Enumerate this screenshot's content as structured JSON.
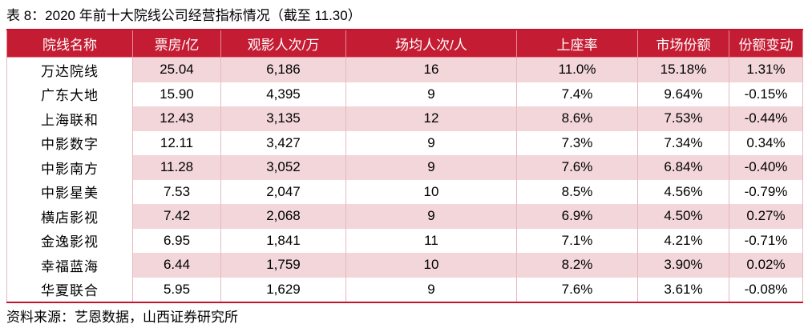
{
  "caption": "表 8：2020 年前十大院线公司经营指标情况（截至 11.30）",
  "table": {
    "headers": [
      "院线名称",
      "票房/亿",
      "观影人次/万",
      "场均人次/人",
      "上座率",
      "市场份额",
      "份额变动"
    ],
    "rows": [
      [
        "万达院线",
        "25.04",
        "6,186",
        "16",
        "11.0%",
        "15.18%",
        "1.31%"
      ],
      [
        "广东大地",
        "15.90",
        "4,395",
        "9",
        "7.4%",
        "9.64%",
        "-0.15%"
      ],
      [
        "上海联和",
        "12.43",
        "3,135",
        "12",
        "8.6%",
        "7.53%",
        "-0.44%"
      ],
      [
        "中影数字",
        "12.11",
        "3,427",
        "9",
        "7.3%",
        "7.34%",
        "0.34%"
      ],
      [
        "中影南方",
        "11.28",
        "3,052",
        "9",
        "7.6%",
        "6.84%",
        "-0.40%"
      ],
      [
        "中影星美",
        "7.53",
        "2,047",
        "10",
        "8.5%",
        "4.56%",
        "-0.79%"
      ],
      [
        "横店影视",
        "7.42",
        "2,068",
        "9",
        "6.9%",
        "4.50%",
        "0.27%"
      ],
      [
        "金逸影视",
        "6.95",
        "1,841",
        "11",
        "7.1%",
        "4.21%",
        "-0.71%"
      ],
      [
        "幸福蓝海",
        "6.44",
        "1,759",
        "10",
        "8.2%",
        "3.90%",
        "0.02%"
      ],
      [
        "华夏联合",
        "5.95",
        "1,629",
        "9",
        "7.6%",
        "3.61%",
        "-0.08%"
      ]
    ]
  },
  "source": "资料来源：艺恩数据，山西证券研究所",
  "colors": {
    "header_bg": "#c41d33",
    "stripe": "#f2d6da"
  }
}
